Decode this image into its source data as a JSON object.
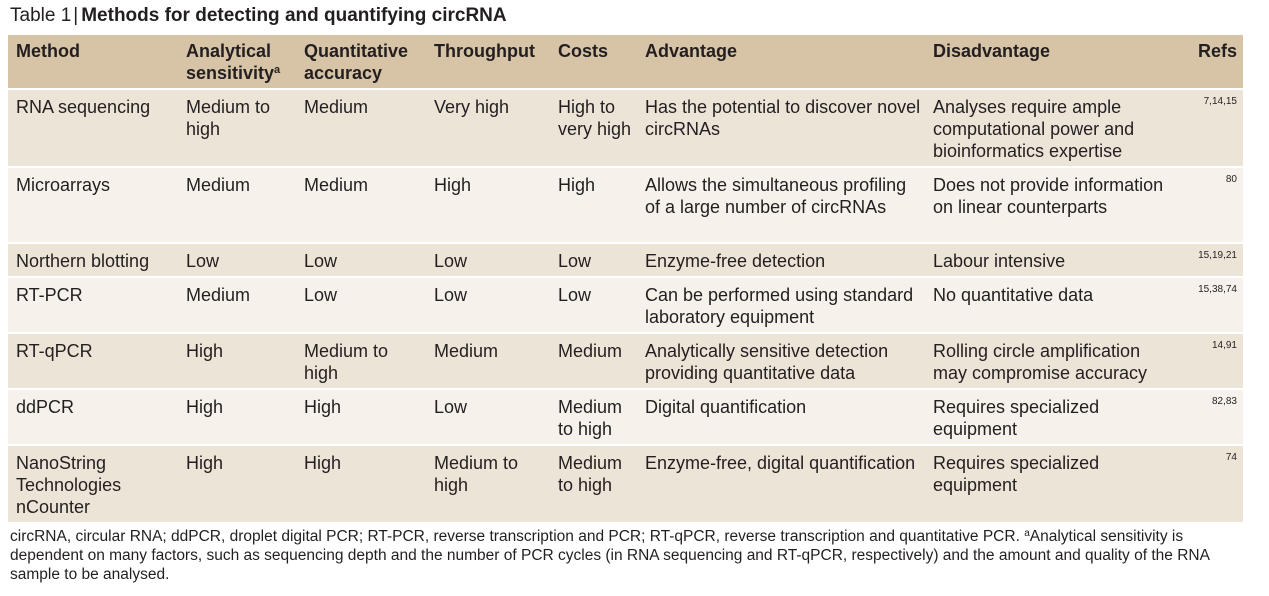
{
  "caption": {
    "label": "Table 1",
    "separator": "|",
    "title": "Methods for detecting and quantifying circRNA"
  },
  "table": {
    "headers": {
      "method": "Method",
      "sensitivity": "Analytical sensitivity",
      "sensitivity_note": "a",
      "accuracy": "Quantitative accuracy",
      "throughput": "Throughput",
      "costs": "Costs",
      "advantage": "Advantage",
      "disadvantage": "Disadvantage",
      "refs": "Refs"
    },
    "rows": [
      {
        "method": "RNA sequencing",
        "sensitivity": "Medium to high",
        "accuracy": "Medium",
        "throughput": "Very high",
        "costs": "High to very high",
        "advantage": "Has the potential to discover novel circRNAs",
        "disadvantage": "Analyses require ample computational power and bioinformatics expertise",
        "refs": "7,14,15"
      },
      {
        "method": "Microarrays",
        "sensitivity": "Medium",
        "accuracy": "Medium",
        "throughput": "High",
        "costs": "High",
        "advantage": "Allows the simultaneous profiling of a large number of circRNAs",
        "disadvantage": "Does not provide information on linear counterparts",
        "refs": "80"
      },
      {
        "method": "Northern blotting",
        "sensitivity": "Low",
        "accuracy": "Low",
        "throughput": "Low",
        "costs": "Low",
        "advantage": "Enzyme-free detection",
        "disadvantage": "Labour intensive",
        "refs": "15,19,21"
      },
      {
        "method": "RT-PCR",
        "sensitivity": "Medium",
        "accuracy": "Low",
        "throughput": "Low",
        "costs": "Low",
        "advantage": "Can be performed using standard laboratory equipment",
        "disadvantage": "No quantitative data",
        "refs": "15,38,74"
      },
      {
        "method": "RT-qPCR",
        "sensitivity": "High",
        "accuracy": "Medium to high",
        "throughput": "Medium",
        "costs": "Medium",
        "advantage": "Analytically sensitive detection providing quantitative data",
        "disadvantage": "Rolling circle amplification may compromise accuracy",
        "refs": "14,91"
      },
      {
        "method": "ddPCR",
        "sensitivity": "High",
        "accuracy": "High",
        "throughput": "Low",
        "costs": "Medium to high",
        "advantage": "Digital quantification",
        "disadvantage": "Requires specialized equipment",
        "refs": "82,83"
      },
      {
        "method": "NanoString Technologies nCounter",
        "sensitivity": "High",
        "accuracy": "High",
        "throughput": "Medium to high",
        "costs": "Medium to high",
        "advantage": "Enzyme-free, digital quantification",
        "disadvantage": "Requires specialized equipment",
        "refs": "74"
      }
    ]
  },
  "footnote": {
    "abbreviations": "circRNA, circular RNA; ddPCR, droplet digital PCR; RT-PCR, reverse transcription and PCR; RT-qPCR, reverse transcription and quantitative PCR.",
    "marker": "a",
    "note": "Analytical sensitivity is dependent on many factors, such as sequencing depth and the number of PCR cycles (in RNA sequencing and RT-qPCR, respectively) and the amount and quality of the RNA sample to be analysed."
  }
}
